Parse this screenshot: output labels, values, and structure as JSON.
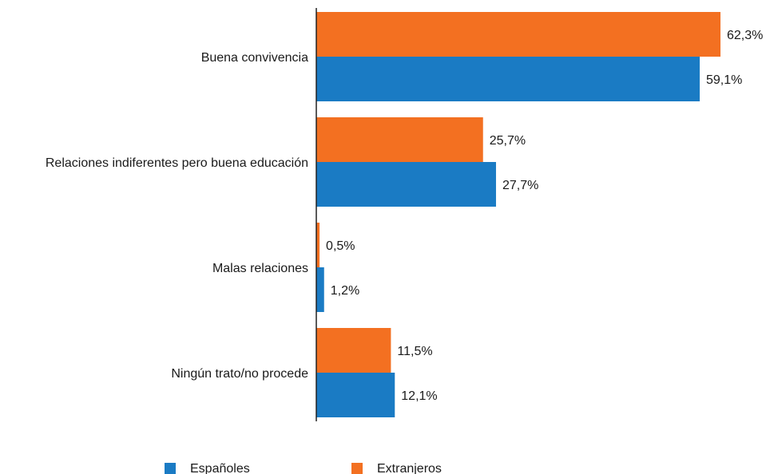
{
  "chart_data": {
    "type": "bar",
    "orientation": "horizontal",
    "categories": [
      "Buena convivencia",
      "Relaciones indiferentes pero buena educación",
      "Malas relaciones",
      "Ningún trato/no procede"
    ],
    "series": [
      {
        "name": "Extranjeros",
        "color": "#f37021",
        "values": [
          62.3,
          25.7,
          0.5,
          11.5
        ],
        "labels": [
          "62,3%",
          "25,7%",
          "0,5%",
          "11,5%"
        ]
      },
      {
        "name": "Españoles",
        "color": "#1a7bc4",
        "values": [
          59.1,
          27.7,
          1.2,
          12.1
        ],
        "labels": [
          "59,1%",
          "27,7%",
          "1,2%",
          "12,1%"
        ]
      }
    ],
    "xlim": [
      0,
      62.3
    ],
    "grid": false,
    "legend_position": "bottom",
    "legend": [
      {
        "name": "Españoles",
        "color": "#1a7bc4"
      },
      {
        "name": "Extranjeros",
        "color": "#f37021"
      }
    ]
  }
}
